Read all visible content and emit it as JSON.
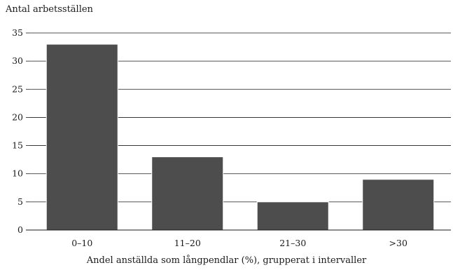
{
  "chart_data": {
    "type": "bar",
    "ylabel": "Antal arbetsställen",
    "xlabel": "Andel anställda som långpendlar (%), grupperat i intervaller",
    "categories": [
      "0–10",
      "11–20",
      "21–30",
      ">30"
    ],
    "values": [
      33,
      13,
      5,
      9
    ],
    "ylim": [
      0,
      35
    ],
    "yticks": [
      0,
      5,
      10,
      15,
      20,
      25,
      30,
      35
    ],
    "grid": true,
    "bar_color": "#4d4d4d"
  }
}
